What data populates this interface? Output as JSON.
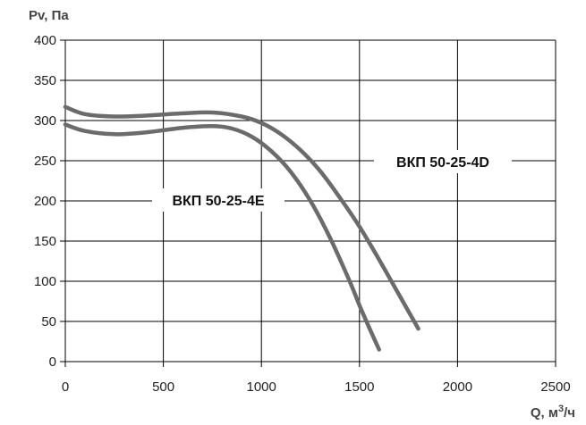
{
  "chart_data": {
    "type": "line",
    "title": "",
    "ylabel": "Pv, Па",
    "xlabel_prefix": "Q, м",
    "xlabel_sup": "3",
    "xlabel_suffix": "/ч",
    "xlim": [
      0,
      2500
    ],
    "ylim": [
      0,
      400
    ],
    "xticks": [
      0,
      500,
      1000,
      1500,
      2000,
      2500
    ],
    "yticks": [
      0,
      50,
      100,
      150,
      200,
      250,
      300,
      350,
      400
    ],
    "grid": true,
    "line_color": "#6b6b6b",
    "grid_color": "#000000",
    "series": [
      {
        "name": "ВКП 50-25-4D",
        "x": [
          0,
          100,
          250,
          400,
          600,
          750,
          900,
          1000,
          1100,
          1200,
          1300,
          1400,
          1500,
          1600,
          1700,
          1800
        ],
        "y": [
          317,
          308,
          305,
          306,
          309,
          310,
          305,
          297,
          283,
          263,
          237,
          204,
          168,
          127,
          84,
          41
        ]
      },
      {
        "name": "ВКП 50-25-4E",
        "x": [
          0,
          100,
          250,
          400,
          600,
          750,
          850,
          950,
          1050,
          1150,
          1250,
          1350,
          1450,
          1500,
          1550,
          1600
        ],
        "y": [
          295,
          287,
          283,
          285,
          291,
          293,
          290,
          280,
          262,
          236,
          200,
          154,
          100,
          70,
          42,
          15
        ]
      }
    ]
  }
}
